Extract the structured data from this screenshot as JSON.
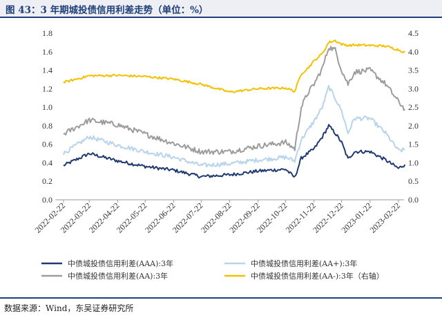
{
  "title": "图 43：3 年期城投债信用利差走势（单位：%）",
  "source": "数据来源：Wind，东吴证券研究所",
  "colors": {
    "title_bar_bg": "#edeff5",
    "title_text": "#1f3f7a",
    "rule": "#1f3f7a"
  },
  "chart_data": {
    "type": "line",
    "x_tick_labels": [
      "2022-02-22",
      "2022-03-22",
      "2022-04-22",
      "2022-05-22",
      "2022-06-22",
      "2022-07-22",
      "2022-08-22",
      "2022-09-22",
      "2022-10-22",
      "2022-11-22",
      "2022-12-22",
      "2023-01-22",
      "2023-02-22"
    ],
    "x": [
      "2022-02-22",
      "2022-03-22",
      "2022-04-22",
      "2022-05-22",
      "2022-06-22",
      "2022-07-22",
      "2022-08-22",
      "2022-09-22",
      "2022-10-22",
      "2022-11-01",
      "2022-11-08",
      "2022-11-15",
      "2022-11-22",
      "2022-12-01",
      "2022-12-08",
      "2022-12-15",
      "2022-12-22",
      "2022-12-29",
      "2023-01-05",
      "2023-01-22",
      "2023-02-08",
      "2023-02-22",
      "2023-03-01"
    ],
    "y_left_ticks": [
      "0.0",
      "0.2",
      "0.4",
      "0.6",
      "0.8",
      "1.0",
      "1.2",
      "1.4",
      "1.6",
      "1.8"
    ],
    "y_right_ticks": [
      "0.0",
      "0.5",
      "1.0",
      "1.5",
      "2.0",
      "2.5",
      "3.0",
      "3.5",
      "4.0",
      "4.5"
    ],
    "y_left_range": [
      0,
      1.8
    ],
    "y_right_range": [
      0,
      4.5
    ],
    "grid": false,
    "legend_position": "bottom",
    "series": [
      {
        "name": "中债城投债信用利差(AAA):3年",
        "axis": "left",
        "color": "#1f3a73",
        "values": [
          0.37,
          0.5,
          0.42,
          0.36,
          0.32,
          0.25,
          0.27,
          0.31,
          0.33,
          0.24,
          0.45,
          0.5,
          0.55,
          0.68,
          0.8,
          0.72,
          0.62,
          0.44,
          0.52,
          0.52,
          0.43,
          0.34,
          0.38
        ]
      },
      {
        "name": "中债城投债信用利差(AA+):3年",
        "axis": "left",
        "color": "#b8d4ec",
        "values": [
          0.5,
          0.68,
          0.59,
          0.52,
          0.46,
          0.37,
          0.39,
          0.43,
          0.46,
          0.42,
          0.65,
          0.75,
          0.85,
          1.0,
          1.22,
          1.1,
          0.96,
          0.72,
          0.88,
          0.88,
          0.72,
          0.53,
          0.54
        ]
      },
      {
        "name": "中债城投债信用利差(AA):3年",
        "axis": "left",
        "color": "#9c9c9c",
        "values": [
          0.71,
          0.86,
          0.81,
          0.71,
          0.61,
          0.52,
          0.52,
          0.58,
          0.62,
          0.55,
          1.0,
          1.15,
          1.25,
          1.42,
          1.65,
          1.62,
          1.4,
          1.25,
          1.38,
          1.4,
          1.25,
          1.06,
          0.98
        ]
      },
      {
        "name": "中债城投债信用利差(AA-):3年（右轴）",
        "axis": "right",
        "color": "#f5c000",
        "values": [
          3.17,
          3.35,
          3.36,
          3.33,
          3.26,
          3.12,
          2.91,
          3.0,
          3.02,
          2.93,
          3.4,
          3.55,
          3.75,
          3.95,
          4.25,
          4.3,
          4.2,
          4.17,
          4.18,
          4.17,
          4.15,
          4.05,
          3.98
        ]
      }
    ]
  }
}
